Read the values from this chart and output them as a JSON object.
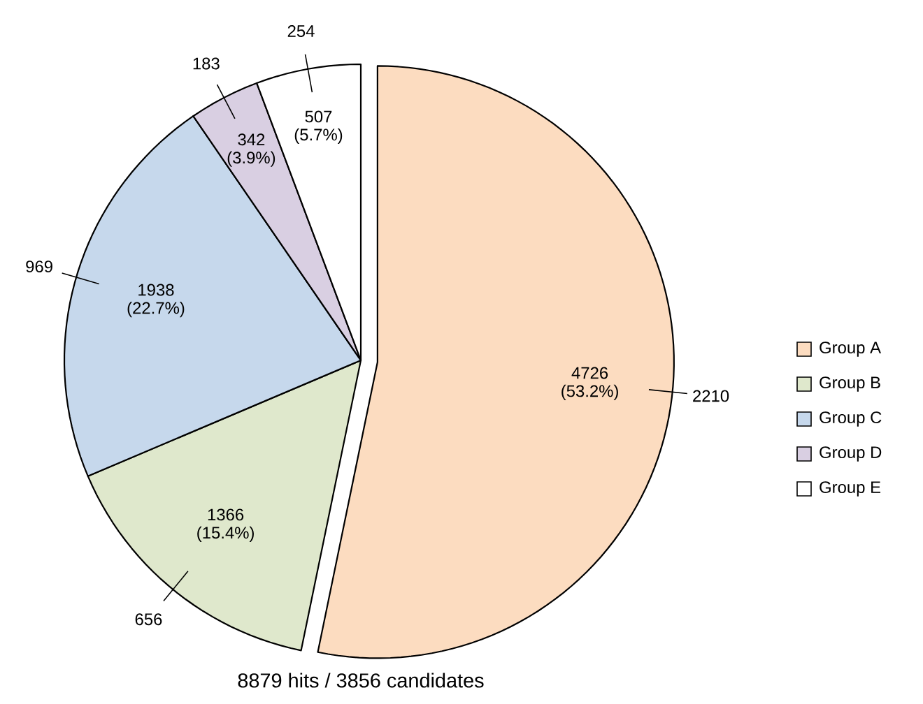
{
  "chart_data": {
    "type": "pie",
    "title": "8879 hits / 3856 candidates",
    "categories": [
      "Group A",
      "Group B",
      "Group C",
      "Group D",
      "Group E"
    ],
    "values": [
      4726,
      1366,
      1938,
      342,
      507
    ],
    "colors": [
      "#fcdcc0",
      "#dfe8cc",
      "#c6d8ec",
      "#d9cfe2",
      "#ffffff"
    ],
    "value_labels": [
      "4726 (53.2%)",
      "1366 (15.4%)",
      "1938 (22.7%)",
      "342 (3.9%)",
      "507 (5.7%)"
    ],
    "annotations": [
      "2210",
      "656",
      "969",
      "183",
      "254"
    ],
    "legend": "right"
  }
}
